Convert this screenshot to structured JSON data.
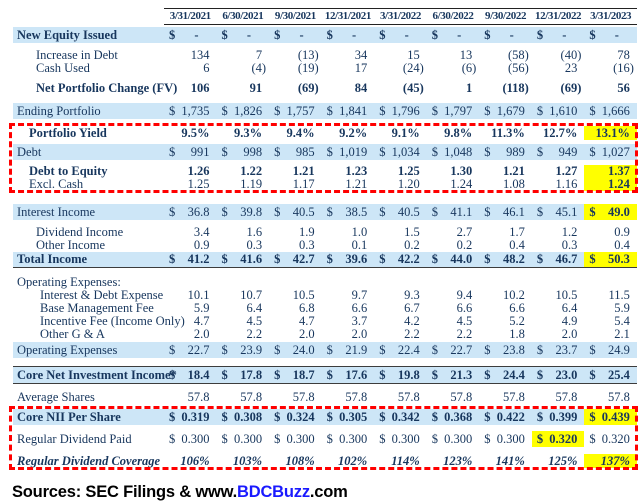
{
  "currency_symbol": "$",
  "colors": {
    "band_blue": "#CDE6F7",
    "highlight_yellow": "#FFFF00",
    "dashed_border_red": "#FF0000",
    "text_navy": "#17365D",
    "brand_blue": "#1A1AFF"
  },
  "columns": [
    "3/31/2021",
    "6/30/2021",
    "9/30/2021",
    "12/31/2021",
    "3/31/2022",
    "6/30/2022",
    "9/30/2022",
    "12/31/2022",
    "3/31/2023"
  ],
  "sections": [
    {
      "name": "section-portfolio-activity",
      "rows": [
        {
          "id": "new-equity-issued",
          "label": "New Equity Issued",
          "band": true,
          "lb": true,
          "vb": true,
          "dollar": true,
          "mt": 2,
          "values": [
            "-",
            "-",
            "-",
            "-",
            "-",
            "-",
            "-",
            "-",
            "-"
          ]
        },
        {
          "id": "increase-in-debt",
          "label": "Increase in Debt",
          "ind": 23,
          "mt": 6,
          "values": [
            "134",
            "7",
            "(13)",
            "34",
            "15",
            "13",
            "(58)",
            "(40)",
            "78"
          ]
        },
        {
          "id": "cash-used",
          "label": "Cash Used",
          "ind": 23,
          "values": [
            "6",
            "(4)",
            "(19)",
            "17",
            "(24)",
            "(6)",
            "(56)",
            "23",
            "(16)"
          ]
        },
        {
          "id": "net-portfolio-change",
          "label": "Net Portfolio Change (FV)",
          "ind": 23,
          "lb": true,
          "vb": true,
          "mt": 6,
          "h": 14,
          "values": [
            "106",
            "91",
            "(69)",
            "84",
            "(45)",
            "1",
            "(118)",
            "(69)",
            "56"
          ]
        },
        {
          "id": "ending-portfolio",
          "label": "Ending Portfolio",
          "band": true,
          "dollar": true,
          "mt": 8,
          "values": [
            "1,735",
            "1,826",
            "1,757",
            "1,841",
            "1,796",
            "1,797",
            "1,679",
            "1,610",
            "1,666"
          ]
        }
      ]
    },
    {
      "name": "section-yield-leverage",
      "dashed": true,
      "mt": 7,
      "rows": [
        {
          "id": "portfolio-yield",
          "label": "Portfolio Yield",
          "ind": 16,
          "lb": true,
          "vb": true,
          "mt": 4,
          "h": 14,
          "hl": [
            8
          ],
          "values": [
            "9.5%",
            "9.3%",
            "9.4%",
            "9.2%",
            "9.1%",
            "9.8%",
            "11.3%",
            "12.7%",
            "13.1%"
          ]
        },
        {
          "id": "debt",
          "label": "Debt",
          "band": true,
          "dollar": true,
          "mt": 4,
          "values": [
            "991",
            "998",
            "985",
            "1,019",
            "1,034",
            "1,048",
            "989",
            "949",
            "1,027"
          ]
        },
        {
          "id": "debt-to-equity",
          "label": "Debt to Equity",
          "ind": 16,
          "lb": true,
          "vb": true,
          "mt": 5,
          "hl": [
            8
          ],
          "values": [
            "1.26",
            "1.22",
            "1.21",
            "1.23",
            "1.25",
            "1.30",
            "1.21",
            "1.27",
            "1.37"
          ]
        },
        {
          "id": "excl-cash",
          "label": "Excl. Cash",
          "ind": 16,
          "hl": [
            8
          ],
          "bc": [
            8
          ],
          "values": [
            "1.25",
            "1.19",
            "1.17",
            "1.21",
            "1.20",
            "1.24",
            "1.08",
            "1.16",
            "1.24"
          ]
        }
      ]
    },
    {
      "name": "section-income-statement",
      "mt": 13,
      "rows": [
        {
          "id": "interest-income",
          "label": "Interest Income",
          "band": true,
          "dollar": true,
          "hl": [
            8
          ],
          "bc": [
            8
          ],
          "values": [
            "36.8",
            "39.8",
            "40.5",
            "38.5",
            "40.5",
            "41.1",
            "46.1",
            "45.1",
            "49.0"
          ]
        },
        {
          "id": "dividend-income",
          "label": "Dividend Income",
          "ind": 23,
          "mt": 6,
          "values": [
            "3.4",
            "1.6",
            "1.9",
            "1.0",
            "1.5",
            "2.7",
            "1.7",
            "1.2",
            "0.9"
          ]
        },
        {
          "id": "other-income",
          "label": "Other Income",
          "ind": 23,
          "values": [
            "0.9",
            "0.3",
            "0.3",
            "0.1",
            "0.2",
            "0.2",
            "0.4",
            "0.3",
            "0.4"
          ]
        },
        {
          "id": "total-income",
          "label": "Total Income",
          "band": true,
          "lb": true,
          "vb": true,
          "dollar": true,
          "hl": [
            8
          ],
          "cls": "bb",
          "values": [
            "41.2",
            "41.6",
            "42.7",
            "39.6",
            "42.2",
            "44.0",
            "48.2",
            "46.7",
            "50.3"
          ]
        },
        {
          "id": "operating-expenses-header",
          "label": "Operating Expenses:",
          "mt": 8,
          "values": []
        },
        {
          "id": "interest-debt-expense",
          "label": "Interest & Debt Expense",
          "ind": 27,
          "values": [
            "10.1",
            "10.7",
            "10.5",
            "9.7",
            "9.3",
            "9.4",
            "10.2",
            "10.5",
            "11.5"
          ]
        },
        {
          "id": "base-management-fee",
          "label": "Base Management Fee",
          "ind": 27,
          "values": [
            "5.9",
            "6.4",
            "6.8",
            "6.6",
            "6.7",
            "6.6",
            "6.6",
            "6.4",
            "5.9"
          ]
        },
        {
          "id": "incentive-fee",
          "label": "Incentive Fee (Income Only)",
          "ind": 27,
          "values": [
            "4.7",
            "4.5",
            "4.7",
            "3.7",
            "4.2",
            "4.5",
            "5.2",
            "4.9",
            "5.4"
          ]
        },
        {
          "id": "other-g-and-a",
          "label": "Other G & A",
          "ind": 27,
          "values": [
            "2.0",
            "2.2",
            "2.0",
            "2.0",
            "2.2",
            "2.2",
            "1.8",
            "2.0",
            "2.1"
          ]
        },
        {
          "id": "operating-expenses-total",
          "label": "Operating Expenses",
          "band": true,
          "dollar": true,
          "mt": 1,
          "values": [
            "22.7",
            "23.9",
            "24.0",
            "21.9",
            "22.4",
            "22.7",
            "23.8",
            "23.7",
            "24.9"
          ]
        },
        {
          "id": "core-net-investment-income",
          "label": "Core Net Investment Income*",
          "band": true,
          "lb": true,
          "vb": true,
          "dollar": true,
          "cls": "btb",
          "mt": 8,
          "values": [
            "18.4",
            "17.8",
            "18.7",
            "17.6",
            "19.8",
            "21.3",
            "24.4",
            "23.0",
            "25.4"
          ]
        },
        {
          "id": "average-shares",
          "label": "Average Shares",
          "mt": 6,
          "h": 14,
          "values": [
            "57.8",
            "57.8",
            "57.8",
            "57.8",
            "57.8",
            "57.8",
            "57.8",
            "57.8",
            "57.8"
          ]
        }
      ]
    },
    {
      "name": "section-per-share",
      "dashed": true,
      "mt": 5,
      "rows": [
        {
          "id": "core-nii-per-share",
          "label": "Core NII Per Share",
          "band": true,
          "lb": true,
          "vb": true,
          "dollar": true,
          "hl": [
            8
          ],
          "mt": 2,
          "values": [
            "0.319",
            "0.308",
            "0.324",
            "0.305",
            "0.342",
            "0.368",
            "0.422",
            "0.399",
            "0.439"
          ]
        },
        {
          "id": "regular-dividend-paid",
          "label": "Regular Dividend Paid",
          "dollar": true,
          "hl": [
            7
          ],
          "bc": [
            7
          ],
          "mt": 6,
          "h": 16,
          "values": [
            "0.300",
            "0.300",
            "0.300",
            "0.300",
            "0.300",
            "0.300",
            "0.300",
            "0.320",
            "0.320"
          ]
        },
        {
          "id": "regular-dividend-coverage",
          "label": "Regular Dividend Coverage",
          "lb": true,
          "vb": true,
          "it": true,
          "hl": [
            8
          ],
          "mt": 7,
          "h": 14,
          "values": [
            "106%",
            "103%",
            "108%",
            "102%",
            "114%",
            "123%",
            "141%",
            "125%",
            "137%"
          ]
        }
      ]
    }
  ],
  "source": {
    "prefix": "Sources: SEC Filings & www.",
    "brand": "BDCBuzz",
    "suffix": ".com"
  }
}
